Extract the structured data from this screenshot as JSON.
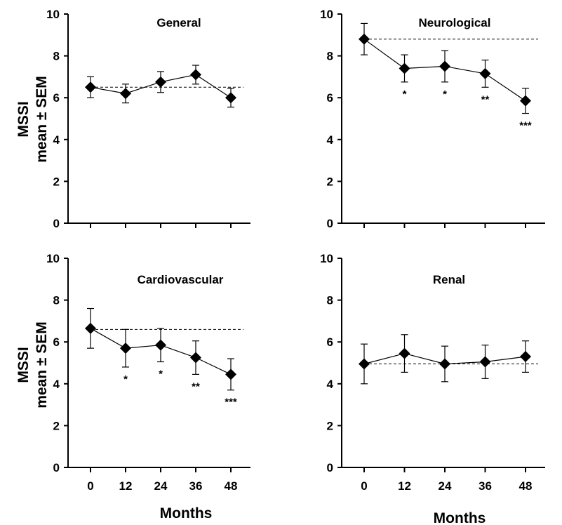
{
  "figure": {
    "ylabel_line1": "MSSI",
    "ylabel_line2": "mean ± SEM",
    "xlabel": "Months",
    "colors": {
      "ink": "#000000",
      "background": "#ffffff"
    }
  },
  "chart_data": [
    {
      "type": "line",
      "title": "General",
      "x": [
        0,
        12,
        24,
        36,
        48
      ],
      "y": [
        6.5,
        6.2,
        6.75,
        7.1,
        6.0
      ],
      "sem": [
        0.5,
        0.45,
        0.5,
        0.45,
        0.45
      ],
      "baseline": 6.5,
      "significance": [
        "",
        "",
        "",
        "",
        ""
      ],
      "ylim": [
        0,
        10
      ],
      "yticks": [
        "0",
        "2",
        "4",
        "6",
        "8",
        "10"
      ],
      "xticks": [
        "0",
        "12",
        "24",
        "36",
        "48"
      ],
      "show_xtick_labels": false
    },
    {
      "type": "line",
      "title": "Neurological",
      "x": [
        0,
        12,
        24,
        36,
        48
      ],
      "y": [
        8.8,
        7.4,
        7.5,
        7.15,
        5.85
      ],
      "sem": [
        0.75,
        0.65,
        0.75,
        0.65,
        0.6
      ],
      "baseline": 8.8,
      "significance": [
        "",
        "*",
        "*",
        "**",
        "***"
      ],
      "ylim": [
        0,
        10
      ],
      "yticks": [
        "0",
        "2",
        "4",
        "6",
        "8",
        "10"
      ],
      "xticks": [
        "0",
        "12",
        "24",
        "36",
        "48"
      ],
      "show_xtick_labels": false
    },
    {
      "type": "line",
      "title": "Cardiovascular",
      "x": [
        0,
        12,
        24,
        36,
        48
      ],
      "y": [
        6.65,
        5.7,
        5.85,
        5.25,
        4.45
      ],
      "sem": [
        0.95,
        0.9,
        0.8,
        0.8,
        0.75
      ],
      "baseline": 6.6,
      "significance": [
        "",
        "*",
        "*",
        "**",
        "***"
      ],
      "ylim": [
        0,
        10
      ],
      "yticks": [
        "0",
        "2",
        "4",
        "6",
        "8",
        "10"
      ],
      "xticks": [
        "0",
        "12",
        "24",
        "36",
        "48"
      ],
      "show_xtick_labels": true
    },
    {
      "type": "line",
      "title": "Renal",
      "x": [
        0,
        12,
        24,
        36,
        48
      ],
      "y": [
        4.95,
        5.45,
        4.95,
        5.05,
        5.3
      ],
      "sem": [
        0.95,
        0.9,
        0.85,
        0.8,
        0.75
      ],
      "baseline": 4.95,
      "significance": [
        "",
        "",
        "",
        "",
        ""
      ],
      "ylim": [
        0,
        10
      ],
      "yticks": [
        "0",
        "2",
        "4",
        "6",
        "8",
        "10"
      ],
      "xticks": [
        "0",
        "12",
        "24",
        "36",
        "48"
      ],
      "show_xtick_labels": true
    }
  ]
}
